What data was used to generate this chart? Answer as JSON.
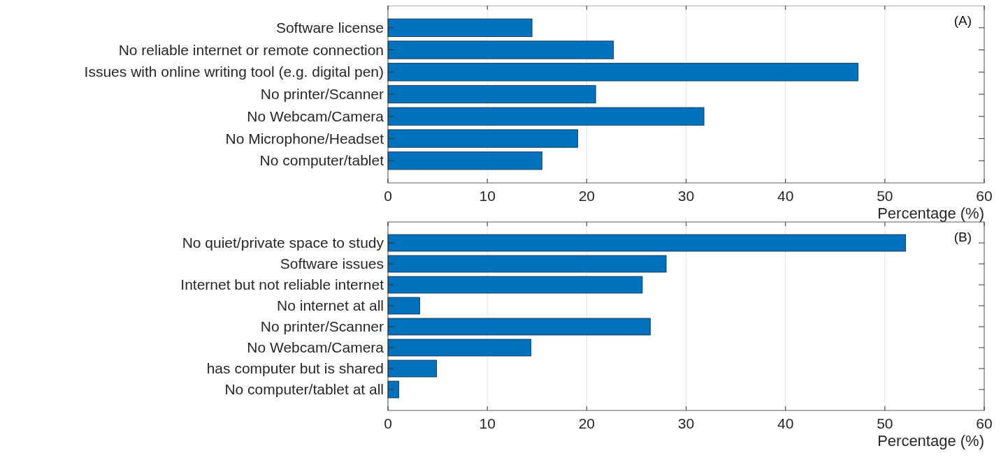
{
  "chart_data": [
    {
      "type": "bar",
      "orientation": "horizontal",
      "categories": [
        "Software license",
        "No reliable internet or remote connection",
        "Issues with online writing tool (e.g. digital pen)",
        "No printer/Scanner",
        "No Webcam/Camera",
        "No Microphone/Headset",
        "No computer/tablet"
      ],
      "values": [
        14.5,
        22.7,
        47.3,
        20.9,
        31.8,
        19.1,
        15.5
      ],
      "color": "#0072bd",
      "xlim": [
        0,
        60
      ],
      "xticks": [
        0,
        10,
        20,
        30,
        40,
        50,
        60
      ],
      "xlabel": "Percentage (%)",
      "grid": "x",
      "annotations": [
        "(A)"
      ]
    },
    {
      "type": "bar",
      "orientation": "horizontal",
      "categories": [
        "No quiet/private space to study",
        "Software issues",
        "Internet but not reliable internet",
        "No internet at all",
        "No printer/Scanner",
        "No Webcam/Camera",
        "has computer but is shared",
        "No computer/tablet at all"
      ],
      "values": [
        52.1,
        28.0,
        25.6,
        3.2,
        26.4,
        14.4,
        4.9,
        1.1
      ],
      "color": "#0072bd",
      "xlim": [
        0,
        60
      ],
      "xticks": [
        0,
        10,
        20,
        30,
        40,
        50,
        60
      ],
      "xlabel": "Percentage (%)",
      "grid": "x",
      "annotations": [
        "(B)"
      ]
    }
  ]
}
